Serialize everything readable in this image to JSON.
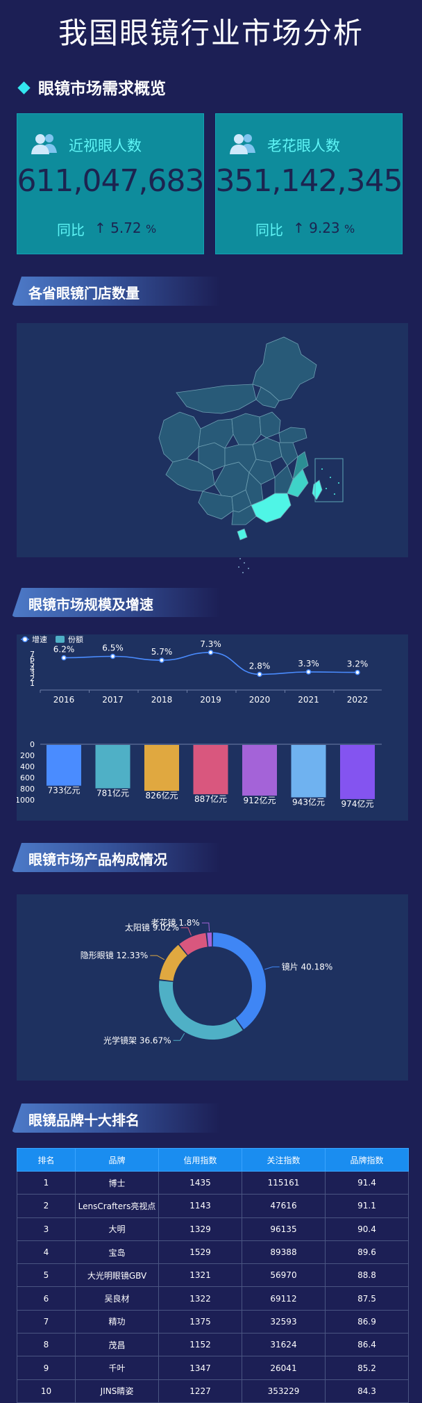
{
  "title": "我国眼镜行业市场分析",
  "overview": {
    "title": "眼镜市场需求概览",
    "cards": [
      {
        "label": "近视眼人数",
        "value": "611,047,683",
        "yoy_label": "同比",
        "arrow": "↑",
        "yoy_value": "5.72",
        "yoy_unit": "%"
      },
      {
        "label": "老花眼人数",
        "value": "351,142,345",
        "yoy_label": "同比",
        "arrow": "↑",
        "yoy_value": "9.23",
        "yoy_unit": "%"
      }
    ]
  },
  "sections": {
    "map": "各省眼镜门店数量",
    "market": "眼镜市场规模及增速",
    "composition": "眼镜市场产品构成情况",
    "ranking": "眼镜品牌十大排名"
  },
  "colors": {
    "background": "#1c1f55",
    "card": "#0e8c9c",
    "panel": "#1e3160",
    "map_base": "#285a78",
    "map_highlight": "#4ff5e6",
    "line": "#4a8cff",
    "table_header": "#1a8df0"
  },
  "chart_data": [
    {
      "type": "line",
      "legend": [
        {
          "name": "增速",
          "icon": "line-dot-icon"
        },
        {
          "name": "份额",
          "icon": "rect-icon"
        }
      ],
      "categories": [
        "2016",
        "2017",
        "2018",
        "2019",
        "2020",
        "2021",
        "2022"
      ],
      "series": [
        {
          "name": "增速",
          "values": [
            6.2,
            6.5,
            5.7,
            7.3,
            2.8,
            3.3,
            3.2
          ],
          "unit": "%"
        }
      ],
      "ylim": [
        1,
        7
      ],
      "yticks": [
        1,
        2,
        3,
        4,
        5,
        6,
        7
      ]
    },
    {
      "type": "bar",
      "categories": [
        "2016",
        "2017",
        "2018",
        "2019",
        "2020",
        "2021",
        "2022"
      ],
      "series": [
        {
          "name": "份额",
          "values": [
            733,
            781,
            826,
            887,
            912,
            943,
            974
          ],
          "unit": "亿元"
        }
      ],
      "ylim": [
        0,
        1000
      ],
      "yticks": [
        0,
        200,
        400,
        600,
        800,
        1000
      ],
      "inverted": true,
      "bar_colors": [
        "#4a8cff",
        "#4fb0c6",
        "#e0a840",
        "#d9577e",
        "#a463d8",
        "#6fb2f0",
        "#8454f0"
      ]
    },
    {
      "type": "pie",
      "donut": true,
      "slices": [
        {
          "name": "镜片",
          "value": 40.18,
          "color": "#3f86f5"
        },
        {
          "name": "光学镜架",
          "value": 36.67,
          "color": "#4fb0c6"
        },
        {
          "name": "隐形眼镜",
          "value": 12.33,
          "color": "#e0a840"
        },
        {
          "name": "太阳镜",
          "value": 9.02,
          "color": "#d9577e"
        },
        {
          "name": "老花镜",
          "value": 1.8,
          "color": "#a463d8"
        }
      ]
    },
    {
      "type": "table",
      "columns": [
        "排名",
        "品牌",
        "信用指数",
        "关注指数",
        "品牌指数"
      ],
      "rows": [
        [
          "1",
          "博士",
          "1435",
          "115161",
          "91.4"
        ],
        [
          "2",
          "LensCrafters亮视点",
          "1143",
          "47616",
          "91.1"
        ],
        [
          "3",
          "大明",
          "1329",
          "96135",
          "90.4"
        ],
        [
          "4",
          "宝岛",
          "1529",
          "89388",
          "89.6"
        ],
        [
          "5",
          "大光明眼镜GBV",
          "1321",
          "56970",
          "88.8"
        ],
        [
          "6",
          "吴良材",
          "1322",
          "69112",
          "87.5"
        ],
        [
          "7",
          "精功",
          "1375",
          "32593",
          "86.9"
        ],
        [
          "8",
          "茂昌",
          "1152",
          "31624",
          "86.4"
        ],
        [
          "9",
          "千叶",
          "1347",
          "26041",
          "85.2"
        ],
        [
          "10",
          "JINS睛姿",
          "1227",
          "353229",
          "84.3"
        ]
      ]
    }
  ]
}
